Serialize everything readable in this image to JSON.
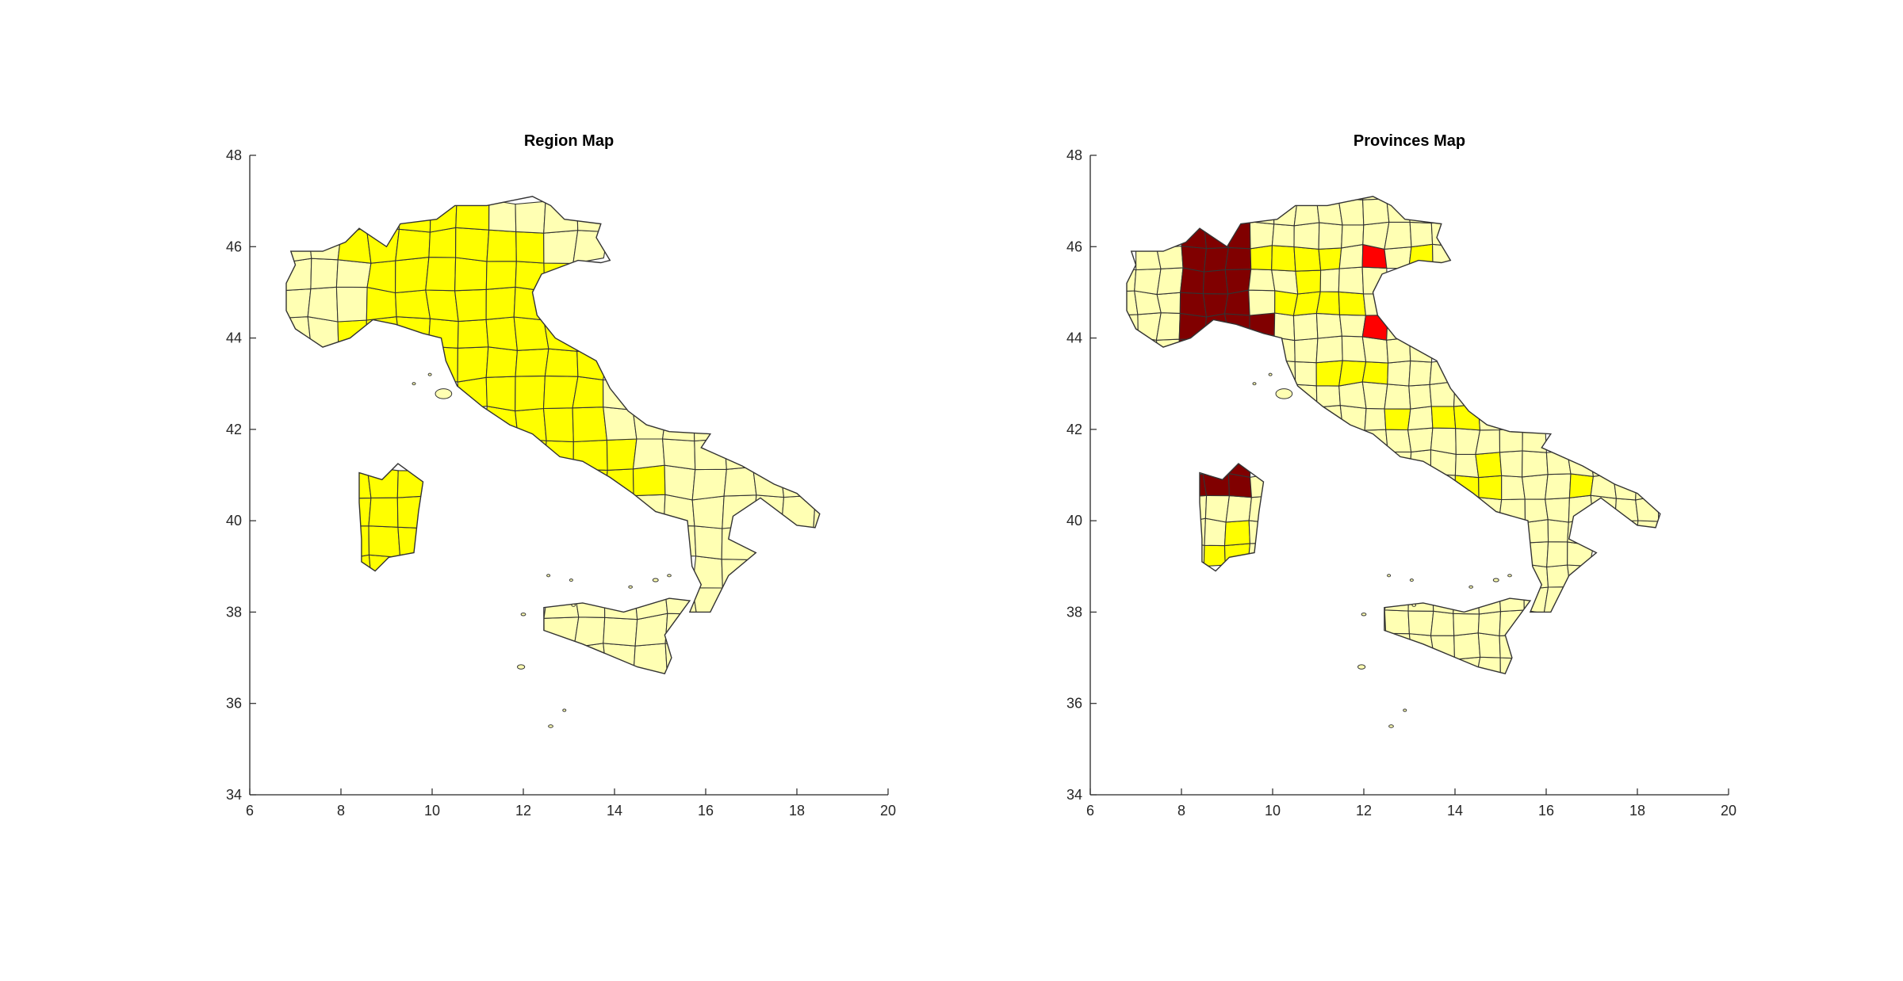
{
  "chart_data": [
    {
      "type": "choropleth-map",
      "title": "Region Map",
      "xlim": [
        6,
        20
      ],
      "ylim": [
        34,
        48
      ],
      "x_ticks": [
        6,
        8,
        10,
        12,
        14,
        16,
        18,
        20
      ],
      "y_ticks": [
        34,
        36,
        38,
        40,
        42,
        44,
        46,
        48
      ],
      "legend": "none",
      "grid": false,
      "highlight_color": "#ffff00",
      "base_color": "#ffffb3",
      "outline_color": "#333333",
      "highlighted_areas": [
        "northern and central regions",
        "Sardinia",
        "Campania"
      ],
      "base_areas": [
        "Piemonte and Aosta Valley",
        "Veneto/Friuli mountains",
        "Abruzzo, Molise, Puglia, Basilicata, Calabria",
        "Sicily"
      ]
    },
    {
      "type": "choropleth-map",
      "title": "Provinces Map",
      "xlim": [
        6,
        20
      ],
      "ylim": [
        34,
        48
      ],
      "x_ticks": [
        6,
        8,
        10,
        12,
        14,
        16,
        18,
        20
      ],
      "y_ticks": [
        34,
        36,
        38,
        40,
        42,
        44,
        46,
        48
      ],
      "legend": "none",
      "grid": false,
      "base_color": "#ffffb3",
      "level_colors": [
        "#ffffb3",
        "#ffff00",
        "#ff0000",
        "#800000"
      ],
      "outline_color": "#333333"
    }
  ]
}
